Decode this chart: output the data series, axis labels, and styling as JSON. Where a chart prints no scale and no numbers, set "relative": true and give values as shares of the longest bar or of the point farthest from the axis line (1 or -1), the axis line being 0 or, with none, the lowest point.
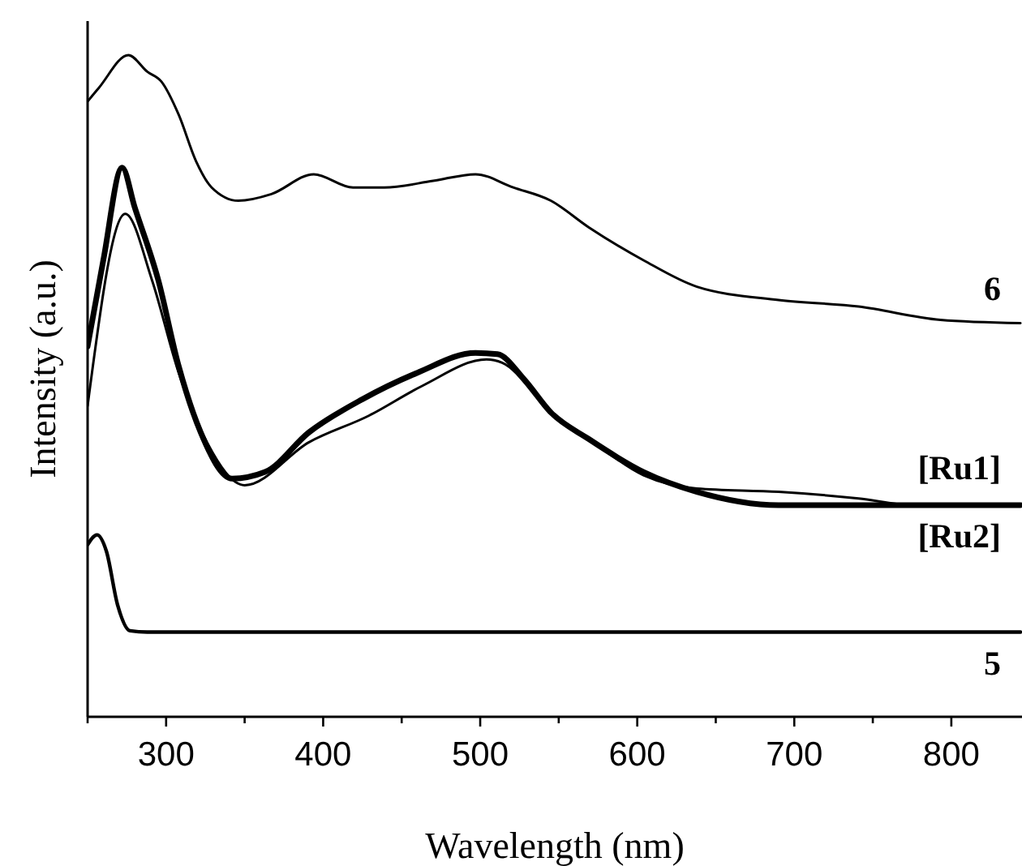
{
  "chart_data": {
    "type": "line",
    "xlabel": "Wavelength (nm)",
    "ylabel": "Intensity (a.u.)",
    "relative": true,
    "tick_labels": "x",
    "grid": false,
    "line_style": "solid",
    "xlim": [
      250,
      845
    ],
    "xticks": [
      {
        "value": 250,
        "label": null
      },
      300,
      {
        "value": 350,
        "label": null
      },
      400,
      {
        "value": 450,
        "label": null
      },
      500,
      {
        "value": 550,
        "label": null
      },
      600,
      {
        "value": 650,
        "label": null
      },
      700,
      {
        "value": 750,
        "label": null
      },
      800
    ],
    "series": [
      {
        "name": "6",
        "color": "#000000",
        "x": [
          250,
          257,
          276,
          288,
          297,
          308,
          319,
          329,
          346,
          367,
          394,
          419,
          439,
          470,
          497,
          521,
          545,
          569,
          604,
          638,
          690,
          741,
          793,
          844
        ],
        "values": [
          0.93,
          0.95,
          1.0,
          0.975,
          0.96,
          0.91,
          0.84,
          0.8,
          0.78,
          0.79,
          0.82,
          0.8,
          0.8,
          0.81,
          0.82,
          0.8,
          0.78,
          0.74,
          0.69,
          0.65,
          0.63,
          0.62,
          0.6,
          0.595
        ]
      },
      {
        "name": "[Ru1]",
        "color": "#000000",
        "x": [
          250,
          260,
          272,
          280,
          295,
          308,
          322,
          342,
          363,
          391,
          425,
          460,
          497,
          511,
          528,
          545,
          569,
          604,
          638,
          690,
          741,
          844
        ],
        "values": [
          0.56,
          0.69,
          0.83,
          0.77,
          0.66,
          0.53,
          0.43,
          0.36,
          0.37,
          0.43,
          0.48,
          0.52,
          0.55,
          0.548,
          0.51,
          0.46,
          0.42,
          0.37,
          0.34,
          0.32,
          0.32,
          0.32
        ]
      },
      {
        "name": "[Ru2]",
        "color": "#000000",
        "x": [
          250,
          274,
          291,
          308,
          326,
          350,
          391,
          429,
          463,
          504,
          514,
          545,
          569,
          604,
          638,
          690,
          741,
          775,
          844
        ],
        "values": [
          0.47,
          0.76,
          0.66,
          0.52,
          0.415,
          0.35,
          0.415,
          0.455,
          0.5,
          0.54,
          0.535,
          0.46,
          0.42,
          0.365,
          0.345,
          0.34,
          0.33,
          0.32,
          0.32
        ]
      },
      {
        "name": "5",
        "color": "#000000",
        "x": [
          250,
          256,
          262,
          269,
          277,
          288,
          844
        ],
        "values": [
          0.26,
          0.275,
          0.25,
          0.17,
          0.13,
          0.128,
          0.128
        ]
      }
    ]
  }
}
